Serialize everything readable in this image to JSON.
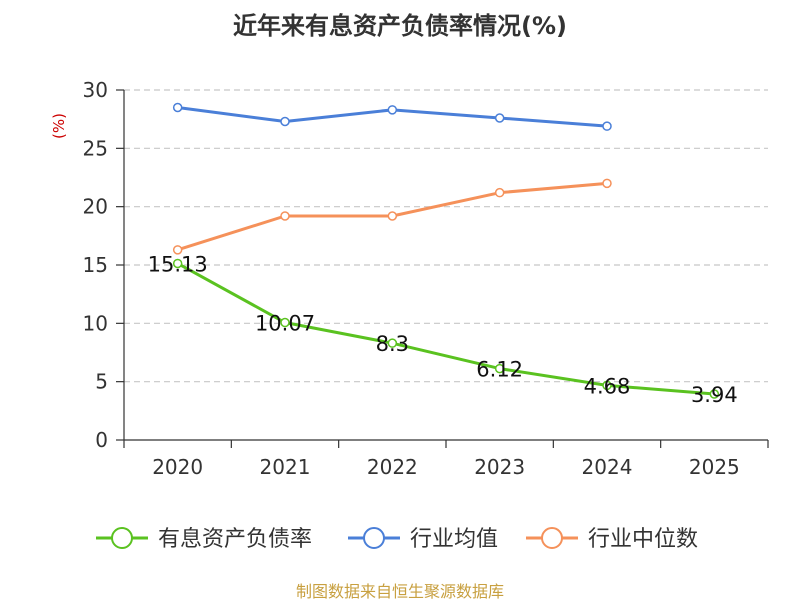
{
  "chart_data": {
    "type": "line",
    "title": "近年来有息资产负债率情况(%)",
    "ylabel": "(%)",
    "xlabel": "",
    "ylim": [
      0,
      30
    ],
    "yticks": [
      0,
      5,
      10,
      15,
      20,
      25,
      30
    ],
    "categories": [
      "2020",
      "2021",
      "2022",
      "2023",
      "2024",
      "2025"
    ],
    "grid": true,
    "legend_position": "bottom",
    "series": [
      {
        "name": "有息资产负债率",
        "color": "#5ac220",
        "values": [
          15.13,
          10.07,
          8.3,
          6.12,
          4.68,
          3.94
        ],
        "labels": [
          "15.13",
          "10.07",
          "8.3",
          "6.12",
          "4.68",
          "3.94"
        ]
      },
      {
        "name": "行业均值",
        "color": "#4a7fd8",
        "values": [
          28.5,
          27.3,
          28.3,
          27.6,
          26.9,
          null
        ]
      },
      {
        "name": "行业中位数",
        "color": "#f5915a",
        "values": [
          16.3,
          19.2,
          19.2,
          21.2,
          22.0,
          null
        ]
      }
    ],
    "source": "制图数据来自恒生聚源数据库"
  }
}
